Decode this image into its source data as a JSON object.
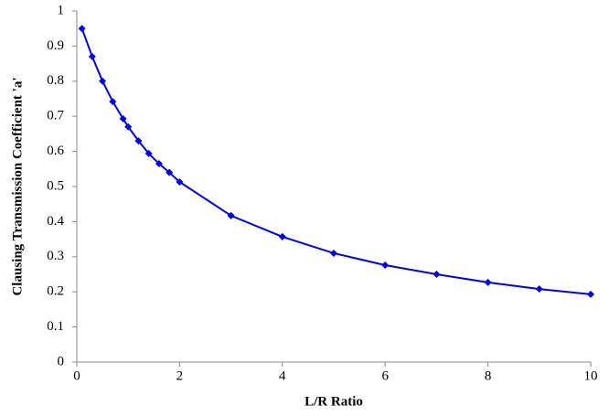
{
  "chart_data": {
    "type": "line",
    "x_label": "L/R Ratio",
    "y_label": "Clausing Transmission Coefficient 'a'",
    "x": [
      0.1,
      0.3,
      0.5,
      0.7,
      0.9,
      1.0,
      1.2,
      1.4,
      1.6,
      1.8,
      2,
      3,
      4,
      5,
      6,
      7,
      8,
      9,
      10
    ],
    "series": [
      {
        "color": "#0000e0",
        "values": [
          0.95,
          0.87,
          0.8,
          0.742,
          0.693,
          0.67,
          0.63,
          0.594,
          0.565,
          0.54,
          0.513,
          0.417,
          0.357,
          0.31,
          0.276,
          0.25,
          0.227,
          0.208,
          0.193
        ]
      }
    ],
    "xlim": [
      0,
      10
    ],
    "xticks": [
      0,
      2,
      4,
      6,
      8,
      10
    ],
    "ylim": [
      0,
      1
    ],
    "yticks": [
      0,
      0.1,
      0.2,
      0.3,
      0.4,
      0.5,
      0.6,
      0.7,
      0.8,
      0.9,
      1
    ],
    "grid": false
  }
}
